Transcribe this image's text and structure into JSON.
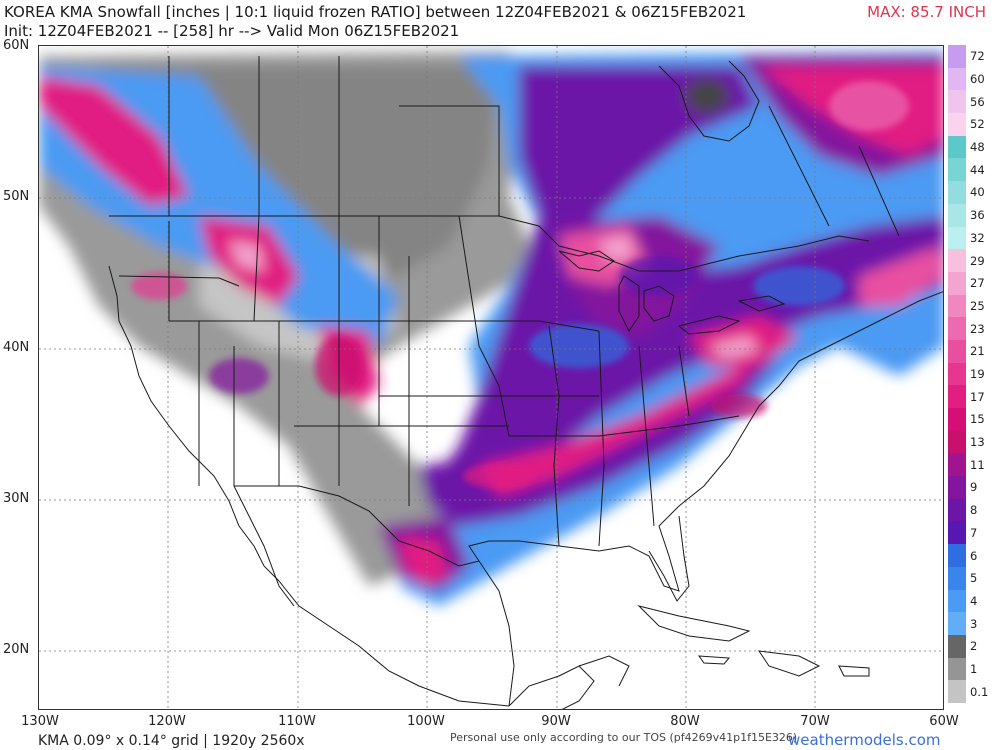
{
  "header": {
    "title": "KOREA KMA Snowfall [inches | 10:1 liquid frozen RATIO] between 12Z04FEB2021 & 06Z15FEB2021",
    "subtitle": "Init: 12Z04FEB2021 -- [258] hr --> Valid Mon 06Z15FEB2021",
    "max_label": "MAX: 85.7 INCH"
  },
  "axes": {
    "lat_labels": [
      "60N",
      "50N",
      "40N",
      "30N",
      "20N"
    ],
    "lon_labels": [
      "130W",
      "120W",
      "110W",
      "100W",
      "90W",
      "80W",
      "70W",
      "60W"
    ]
  },
  "colorbar": {
    "labels": [
      "72",
      "60",
      "56",
      "52",
      "48",
      "44",
      "40",
      "36",
      "32",
      "29",
      "27",
      "25",
      "23",
      "21",
      "19",
      "17",
      "15",
      "13",
      "11",
      "9",
      "8",
      "7",
      "6",
      "5",
      "4",
      "3",
      "2",
      "1",
      "0.1"
    ],
    "colors": [
      "#c79cf0",
      "#e2b6f2",
      "#f1c4ee",
      "#fad4ef",
      "#5ec7c9",
      "#79d4d6",
      "#93dde0",
      "#a9e6e8",
      "#bceff0",
      "#f6c0de",
      "#f3a4cf",
      "#f088c0",
      "#ec6bb0",
      "#e84fa0",
      "#e53791",
      "#e11e82",
      "#d60f77",
      "#c8106e",
      "#a0148f",
      "#84159e",
      "#6c16a8",
      "#5817b0",
      "#2f6ee0",
      "#3a85ec",
      "#4b9af3",
      "#61aef6",
      "#666666",
      "#959595",
      "#c4c4c4"
    ]
  },
  "footer": {
    "grid_info": "KMA 0.09° x 0.14° grid | 1920y 2560x",
    "tos": "Personal use only according to our TOS (pf4269v41p1f15E326)",
    "brand": "weathermodels.com"
  }
}
